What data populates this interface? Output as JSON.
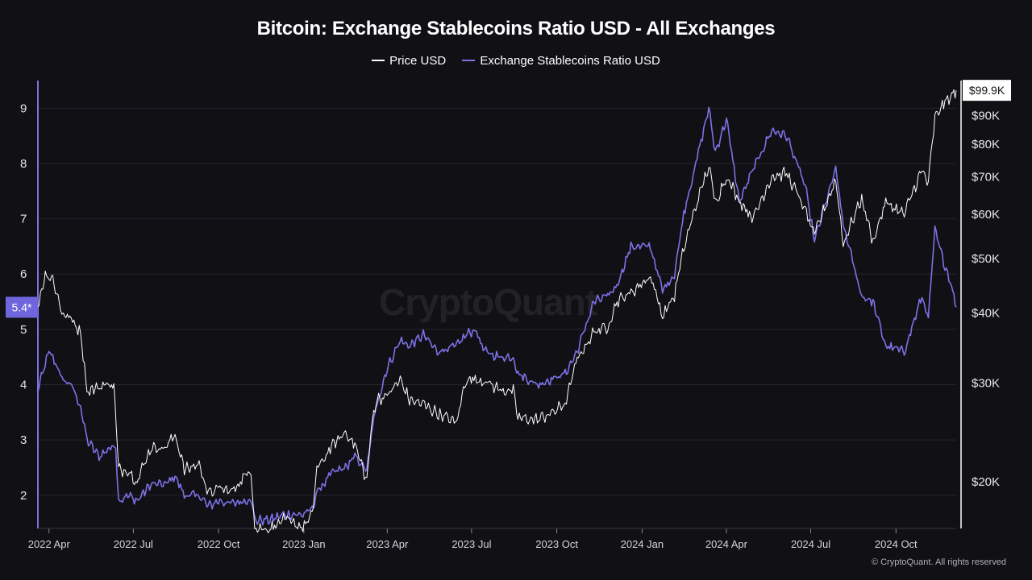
{
  "chart_data": {
    "type": "line",
    "title": "Bitcoin: Exchange Stablecoins Ratio USD - All Exchanges",
    "legend_position": "top-center",
    "grid": true,
    "x_ticks": [
      "2022 Apr",
      "2022 Jul",
      "2022 Oct",
      "2023 Jan",
      "2023 Apr",
      "2023 Jul",
      "2023 Oct",
      "2024 Jan",
      "2024 Apr",
      "2024 Jul",
      "2024 Oct"
    ],
    "x_range": [
      "2022-03-20",
      "2024-12-05"
    ],
    "left_axis": {
      "ticks": [
        "2",
        "3",
        "4",
        "5",
        "6",
        "7",
        "8",
        "9"
      ],
      "range": [
        1.4,
        9.5
      ],
      "current_badge": "5.4*"
    },
    "right_axis": {
      "scale": "log",
      "ticks": [
        "$20K",
        "$30K",
        "$40K",
        "$50K",
        "$60K",
        "$70K",
        "$80K",
        "$90K"
      ],
      "tick_values": [
        20000,
        30000,
        40000,
        50000,
        60000,
        70000,
        80000,
        90000
      ],
      "range": [
        16500,
        104000
      ],
      "current_badge": "$99.9K"
    },
    "series": [
      {
        "name": "Price USD",
        "color": "#ffffff",
        "axis": "right",
        "points": [
          [
            "2022-03-20",
            41000
          ],
          [
            "2022-03-28",
            47000
          ],
          [
            "2022-04-05",
            46000
          ],
          [
            "2022-04-15",
            40000
          ],
          [
            "2022-04-25",
            39000
          ],
          [
            "2022-05-05",
            37000
          ],
          [
            "2022-05-12",
            29000
          ],
          [
            "2022-05-25",
            29500
          ],
          [
            "2022-06-05",
            30000
          ],
          [
            "2022-06-10",
            29500
          ],
          [
            "2022-06-15",
            21000
          ],
          [
            "2022-06-25",
            21000
          ],
          [
            "2022-07-05",
            20000
          ],
          [
            "2022-07-20",
            23000
          ],
          [
            "2022-08-05",
            23000
          ],
          [
            "2022-08-15",
            24300
          ],
          [
            "2022-08-25",
            21000
          ],
          [
            "2022-09-10",
            21500
          ],
          [
            "2022-09-20",
            19000
          ],
          [
            "2022-10-01",
            19500
          ],
          [
            "2022-10-15",
            19200
          ],
          [
            "2022-10-30",
            20500
          ],
          [
            "2022-11-05",
            21000
          ],
          [
            "2022-11-09",
            16500
          ],
          [
            "2022-11-25",
            16500
          ],
          [
            "2022-12-10",
            17100
          ],
          [
            "2022-12-31",
            16600
          ],
          [
            "2023-01-10",
            17400
          ],
          [
            "2023-01-15",
            21000
          ],
          [
            "2023-01-31",
            23100
          ],
          [
            "2023-02-15",
            24500
          ],
          [
            "2023-02-25",
            23300
          ],
          [
            "2023-03-10",
            20000
          ],
          [
            "2023-03-15",
            25000
          ],
          [
            "2023-03-20",
            28000
          ],
          [
            "2023-04-01",
            28500
          ],
          [
            "2023-04-15",
            30400
          ],
          [
            "2023-04-25",
            28000
          ],
          [
            "2023-05-10",
            27500
          ],
          [
            "2023-05-25",
            26500
          ],
          [
            "2023-06-15",
            25500
          ],
          [
            "2023-06-25",
            30500
          ],
          [
            "2023-07-15",
            30300
          ],
          [
            "2023-07-31",
            29200
          ],
          [
            "2023-08-15",
            29000
          ],
          [
            "2023-08-20",
            26000
          ],
          [
            "2023-09-10",
            25800
          ],
          [
            "2023-09-25",
            26500
          ],
          [
            "2023-10-10",
            27500
          ],
          [
            "2023-10-23",
            33000
          ],
          [
            "2023-11-10",
            37000
          ],
          [
            "2023-11-25",
            37800
          ],
          [
            "2023-12-05",
            42000
          ],
          [
            "2023-12-20",
            43500
          ],
          [
            "2024-01-10",
            46500
          ],
          [
            "2024-01-23",
            39500
          ],
          [
            "2024-02-05",
            43000
          ],
          [
            "2024-02-15",
            52000
          ],
          [
            "2024-02-28",
            62000
          ],
          [
            "2024-03-13",
            73000
          ],
          [
            "2024-03-20",
            63000
          ],
          [
            "2024-04-01",
            70000
          ],
          [
            "2024-04-15",
            63500
          ],
          [
            "2024-04-30",
            59000
          ],
          [
            "2024-05-20",
            70000
          ],
          [
            "2024-06-05",
            71000
          ],
          [
            "2024-06-25",
            61000
          ],
          [
            "2024-07-05",
            55000
          ],
          [
            "2024-07-28",
            69000
          ],
          [
            "2024-08-05",
            53000
          ],
          [
            "2024-08-25",
            64000
          ],
          [
            "2024-09-06",
            53500
          ],
          [
            "2024-09-20",
            63000
          ],
          [
            "2024-10-10",
            60000
          ],
          [
            "2024-10-29",
            72000
          ],
          [
            "2024-11-05",
            68000
          ],
          [
            "2024-11-12",
            89000
          ],
          [
            "2024-11-20",
            94000
          ],
          [
            "2024-11-30",
            97500
          ],
          [
            "2024-12-05",
            99900
          ]
        ]
      },
      {
        "name": "Exchange Stablecoins Ratio USD",
        "color": "#7b72e6",
        "axis": "left",
        "points": [
          [
            "2022-03-20",
            3.9
          ],
          [
            "2022-03-25",
            4.2
          ],
          [
            "2022-04-01",
            4.6
          ],
          [
            "2022-04-08",
            4.4
          ],
          [
            "2022-04-15",
            4.1
          ],
          [
            "2022-04-25",
            4.0
          ],
          [
            "2022-05-05",
            3.6
          ],
          [
            "2022-05-12",
            3.0
          ],
          [
            "2022-05-25",
            2.7
          ],
          [
            "2022-06-05",
            2.85
          ],
          [
            "2022-06-12",
            2.9
          ],
          [
            "2022-06-15",
            1.9
          ],
          [
            "2022-06-25",
            2.0
          ],
          [
            "2022-07-05",
            1.9
          ],
          [
            "2022-07-20",
            2.2
          ],
          [
            "2022-08-05",
            2.2
          ],
          [
            "2022-08-15",
            2.35
          ],
          [
            "2022-08-25",
            2.0
          ],
          [
            "2022-09-10",
            2.0
          ],
          [
            "2022-09-20",
            1.8
          ],
          [
            "2022-10-01",
            1.9
          ],
          [
            "2022-10-15",
            1.85
          ],
          [
            "2022-10-30",
            1.9
          ],
          [
            "2022-11-05",
            1.95
          ],
          [
            "2022-11-09",
            1.55
          ],
          [
            "2022-11-25",
            1.55
          ],
          [
            "2022-12-10",
            1.65
          ],
          [
            "2022-12-31",
            1.65
          ],
          [
            "2023-01-10",
            1.75
          ],
          [
            "2023-01-15",
            2.05
          ],
          [
            "2023-01-31",
            2.4
          ],
          [
            "2023-02-15",
            2.5
          ],
          [
            "2023-02-25",
            2.7
          ],
          [
            "2023-03-10",
            2.45
          ],
          [
            "2023-03-15",
            3.1
          ],
          [
            "2023-03-20",
            3.6
          ],
          [
            "2023-04-01",
            4.3
          ],
          [
            "2023-04-15",
            4.8
          ],
          [
            "2023-04-25",
            4.7
          ],
          [
            "2023-05-10",
            4.9
          ],
          [
            "2023-05-25",
            4.6
          ],
          [
            "2023-06-15",
            4.7
          ],
          [
            "2023-06-25",
            4.9
          ],
          [
            "2023-07-05",
            5.0
          ],
          [
            "2023-07-15",
            4.6
          ],
          [
            "2023-07-31",
            4.5
          ],
          [
            "2023-08-15",
            4.5
          ],
          [
            "2023-08-20",
            4.2
          ],
          [
            "2023-09-10",
            4.0
          ],
          [
            "2023-09-25",
            4.1
          ],
          [
            "2023-10-10",
            4.2
          ],
          [
            "2023-10-23",
            4.6
          ],
          [
            "2023-11-10",
            5.5
          ],
          [
            "2023-11-25",
            5.6
          ],
          [
            "2023-12-05",
            5.8
          ],
          [
            "2023-12-20",
            6.5
          ],
          [
            "2024-01-10",
            6.5
          ],
          [
            "2024-01-23",
            5.7
          ],
          [
            "2024-02-05",
            6.0
          ],
          [
            "2024-02-15",
            7.1
          ],
          [
            "2024-02-28",
            8.0
          ],
          [
            "2024-03-13",
            9.0
          ],
          [
            "2024-03-20",
            8.2
          ],
          [
            "2024-04-01",
            8.8
          ],
          [
            "2024-04-15",
            7.3
          ],
          [
            "2024-04-30",
            7.9
          ],
          [
            "2024-05-20",
            8.6
          ],
          [
            "2024-06-05",
            8.5
          ],
          [
            "2024-06-25",
            7.6
          ],
          [
            "2024-07-05",
            6.6
          ],
          [
            "2024-07-28",
            7.9
          ],
          [
            "2024-08-05",
            6.9
          ],
          [
            "2024-08-25",
            5.6
          ],
          [
            "2024-09-06",
            5.5
          ],
          [
            "2024-09-20",
            4.7
          ],
          [
            "2024-10-10",
            4.6
          ],
          [
            "2024-10-29",
            5.6
          ],
          [
            "2024-11-05",
            5.2
          ],
          [
            "2024-11-12",
            6.8
          ],
          [
            "2024-11-20",
            6.3
          ],
          [
            "2024-11-30",
            5.8
          ],
          [
            "2024-12-05",
            5.4
          ]
        ]
      }
    ]
  },
  "watermark": "CryptoQuant",
  "copyright": "© CryptoQuant. All rights reserved"
}
